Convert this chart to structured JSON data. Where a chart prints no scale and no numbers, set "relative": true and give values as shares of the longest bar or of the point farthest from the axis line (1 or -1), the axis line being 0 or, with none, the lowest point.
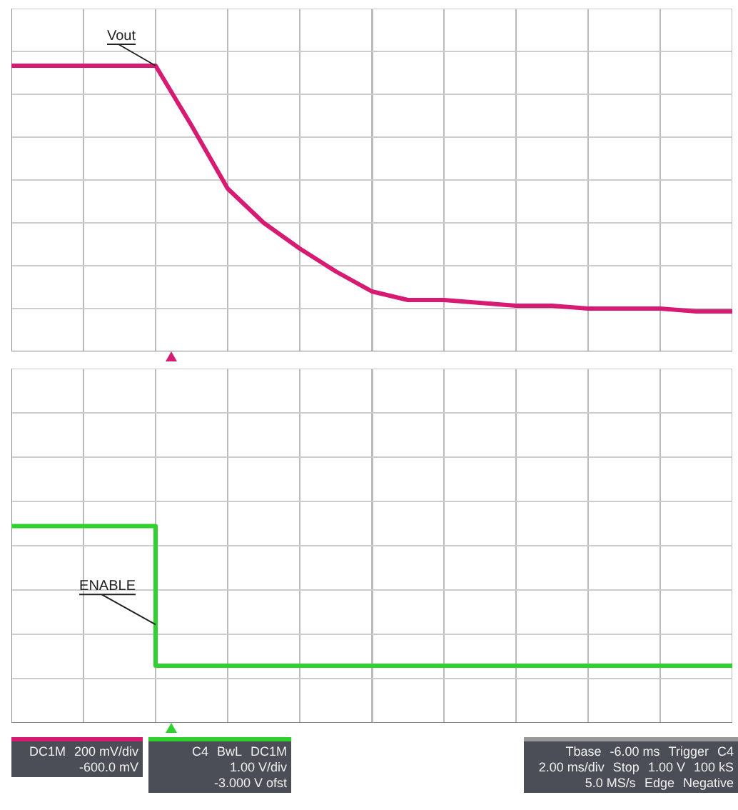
{
  "chart_data": [
    {
      "type": "line",
      "relative": true,
      "grid": true,
      "legend": false,
      "marker": "none",
      "tick_labels": false,
      "categories": [
        null,
        null,
        null,
        null,
        null,
        null,
        null,
        null,
        null,
        null,
        null,
        null,
        null,
        null,
        null,
        null,
        null,
        null,
        null,
        null,
        null
      ],
      "series": [
        {
          "color": "#d81b72",
          "values": [
            1,
            1,
            1,
            1,
            1,
            0.79,
            0.57,
            0.45,
            0.36,
            0.28,
            0.21,
            0.18,
            0.18,
            0.17,
            0.16,
            0.16,
            0.15,
            0.15,
            0.15,
            0.14,
            0.14
          ]
        }
      ],
      "annotations": [
        {
          "text": "Vout"
        },
        "DC1M",
        "200 mV/div",
        "-600.0 mV"
      ]
    },
    {
      "type": "step",
      "relative": true,
      "grid": true,
      "legend": false,
      "marker": "none",
      "tick_labels": false,
      "categories": [
        null,
        null,
        null,
        null,
        null,
        null,
        null,
        null,
        null,
        null,
        null,
        null,
        null,
        null,
        null,
        null,
        null,
        null,
        null,
        null,
        null
      ],
      "series": [
        {
          "color": "#2fd12f",
          "values": [
            1,
            1,
            1,
            1,
            1,
            0.29,
            0.29,
            0.29,
            0.29,
            0.29,
            0.29,
            0.29,
            0.29,
            0.29,
            0.29,
            0.29,
            0.29,
            0.29,
            0.29,
            0.29,
            0.29
          ]
        }
      ],
      "annotations": [
        {
          "text": "ENABLE"
        },
        "C4",
        "BwL",
        "DC1M",
        "1.00 V/div",
        "-3.000 V ofst"
      ]
    },
    {
      "type": "other",
      "annotations": [
        "Tbase",
        "-6.00 ms",
        "Trigger",
        "C4",
        "2.00 ms/div",
        "Stop",
        "1.00 V",
        "100 kS",
        "5.0 MS/s",
        "Edge",
        "Negative"
      ]
    }
  ]
}
